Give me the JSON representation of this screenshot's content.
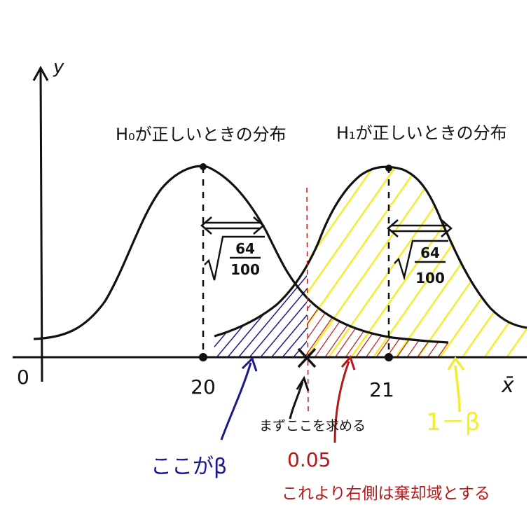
{
  "axes": {
    "y_label": "y",
    "x_label": "x̄",
    "origin_label": "0"
  },
  "distributions": {
    "h0": {
      "title": "H₀が正しいときの分布",
      "mean_label": "20",
      "sd_label_num": "64",
      "sd_label_den": "100"
    },
    "h1": {
      "title": "H₁が正しいときの分布",
      "mean_label": "21",
      "sd_label_num": "64",
      "sd_label_den": "100"
    }
  },
  "annotations": {
    "critical_note": "まずここを求める",
    "alpha_value": "0.05",
    "rejection_note": "これより右側は棄却域とする",
    "beta_note": "ここがβ",
    "power_note": "1－β"
  },
  "colors": {
    "ink": "#111111",
    "beta_hatch": "#1a1a8c",
    "alpha_hatch": "#b41818",
    "power_hatch": "#f2ee2e",
    "critical_line": "#c82020"
  }
}
